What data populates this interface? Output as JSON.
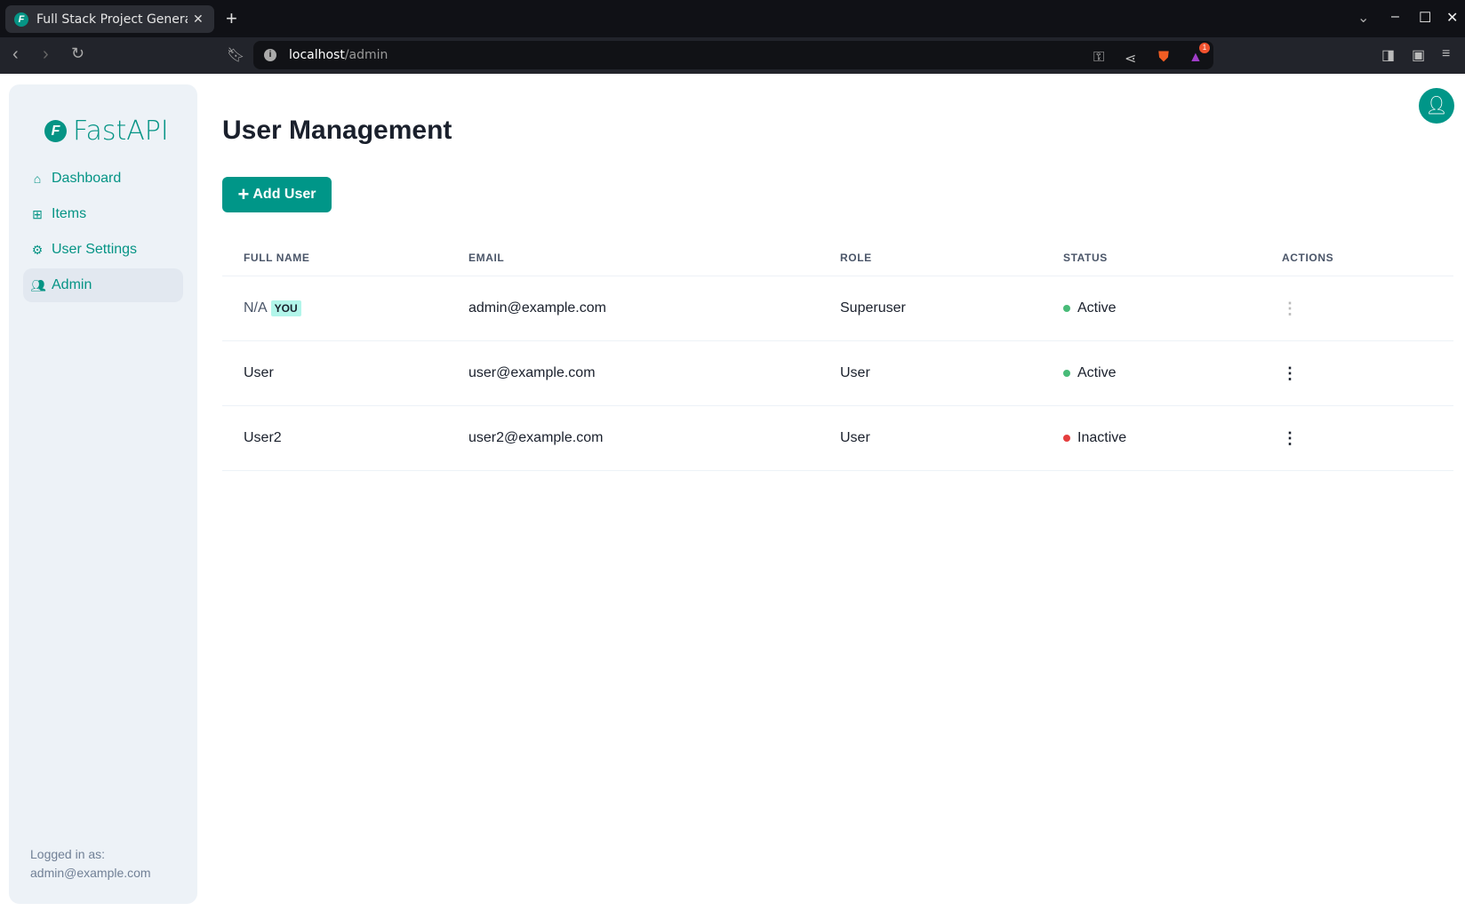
{
  "browser": {
    "tab_title": "Full Stack Project Genera",
    "url_host": "localhost",
    "url_path": "/admin",
    "notification_count": "1"
  },
  "sidebar": {
    "logo": "FastAPI",
    "items": [
      {
        "label": "Dashboard",
        "icon": "home-icon"
      },
      {
        "label": "Items",
        "icon": "briefcase-icon"
      },
      {
        "label": "User Settings",
        "icon": "gear-icon"
      },
      {
        "label": "Admin",
        "icon": "users-icon",
        "active": true
      }
    ],
    "logged_in_label": "Logged in as:",
    "logged_in_email": "admin@example.com"
  },
  "main": {
    "title": "User Management",
    "add_button": "Add User",
    "columns": [
      "FULL NAME",
      "EMAIL",
      "ROLE",
      "STATUS",
      "ACTIONS"
    ],
    "rows": [
      {
        "full_name": "N/A",
        "badge": "YOU",
        "email": "admin@example.com",
        "role": "Superuser",
        "status": "Active"
      },
      {
        "full_name": "User",
        "email": "user@example.com",
        "role": "User",
        "status": "Active"
      },
      {
        "full_name": "User2",
        "email": "user2@example.com",
        "role": "User",
        "status": "Inactive"
      }
    ]
  },
  "colors": {
    "brand": "#009688",
    "active": "#48bb78",
    "inactive": "#e53e3e"
  }
}
